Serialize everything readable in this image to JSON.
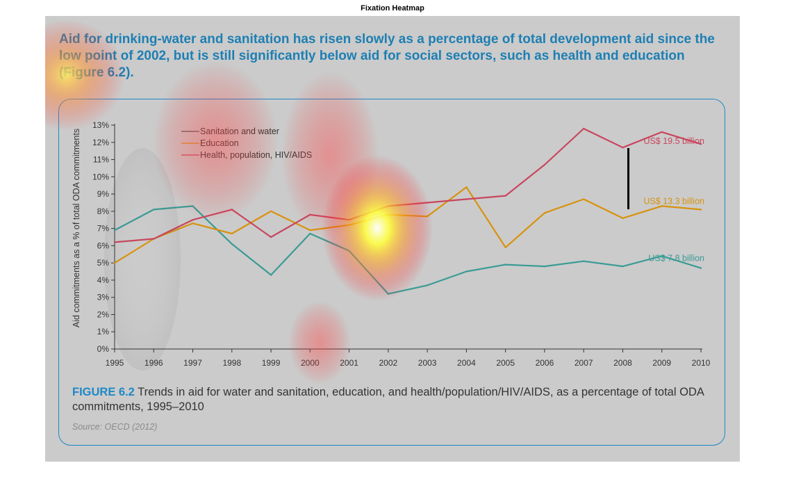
{
  "figure_title": "Fixation Heatmap",
  "intro_text": "Aid for drinking-water and sanitation has risen slowly as a percentage of total development aid since the low point of 2002, but is still significantly below aid for social sectors, such as health and education (Figure 6.2).",
  "caption": {
    "label": "FIGURE 6.2",
    "text": " Trends in aid for water and sanitation, education, and health/population/HIV/AIDS, as a percentage of total ODA commitments, 1995–2010"
  },
  "source": "Source: OECD (2012)",
  "colors": {
    "sanitation": "#3a9b95",
    "education": "#d8920e",
    "health": "#c8465e",
    "accent": "#1e88c7"
  },
  "chart_data": {
    "type": "line",
    "x": [
      1995,
      1996,
      1997,
      1998,
      1999,
      2000,
      2001,
      2002,
      2003,
      2004,
      2005,
      2006,
      2007,
      2008,
      2009,
      2010
    ],
    "ylabel": "Aid commitments as a % of total ODA commitments",
    "xlabel": "",
    "ylim": [
      0,
      13
    ],
    "yticks": [
      "0%",
      "1%",
      "2%",
      "3%",
      "4%",
      "5%",
      "6%",
      "7%",
      "8%",
      "9%",
      "10%",
      "11%",
      "12%",
      "13%"
    ],
    "legend_position": "top-left",
    "grid": false,
    "series": [
      {
        "name": "Sanitation and water",
        "legend_swatch": "#555555",
        "color": "#3a9b95",
        "values": [
          6.9,
          8.1,
          8.3,
          6.1,
          4.3,
          6.7,
          5.7,
          3.2,
          3.7,
          4.5,
          4.9,
          4.8,
          5.1,
          4.8,
          5.4,
          4.7
        ],
        "end_label": "US$ 7.8 billion"
      },
      {
        "name": "Education",
        "legend_swatch": "#d8920e",
        "color": "#d8920e",
        "values": [
          5.0,
          6.4,
          7.3,
          6.7,
          8.0,
          6.9,
          7.2,
          7.8,
          7.7,
          9.4,
          5.9,
          7.9,
          8.7,
          7.6,
          8.3,
          8.1
        ],
        "end_label": "US$ 13.3 billion"
      },
      {
        "name": "Health, population, HIV/AIDS",
        "legend_swatch": "#c8465e",
        "color": "#c8465e",
        "values": [
          6.2,
          6.4,
          7.5,
          8.1,
          6.5,
          7.8,
          7.5,
          8.3,
          8.5,
          8.7,
          8.9,
          10.7,
          12.8,
          11.7,
          12.6,
          11.9
        ],
        "end_label": "US$ 19.5 billion"
      }
    ]
  }
}
